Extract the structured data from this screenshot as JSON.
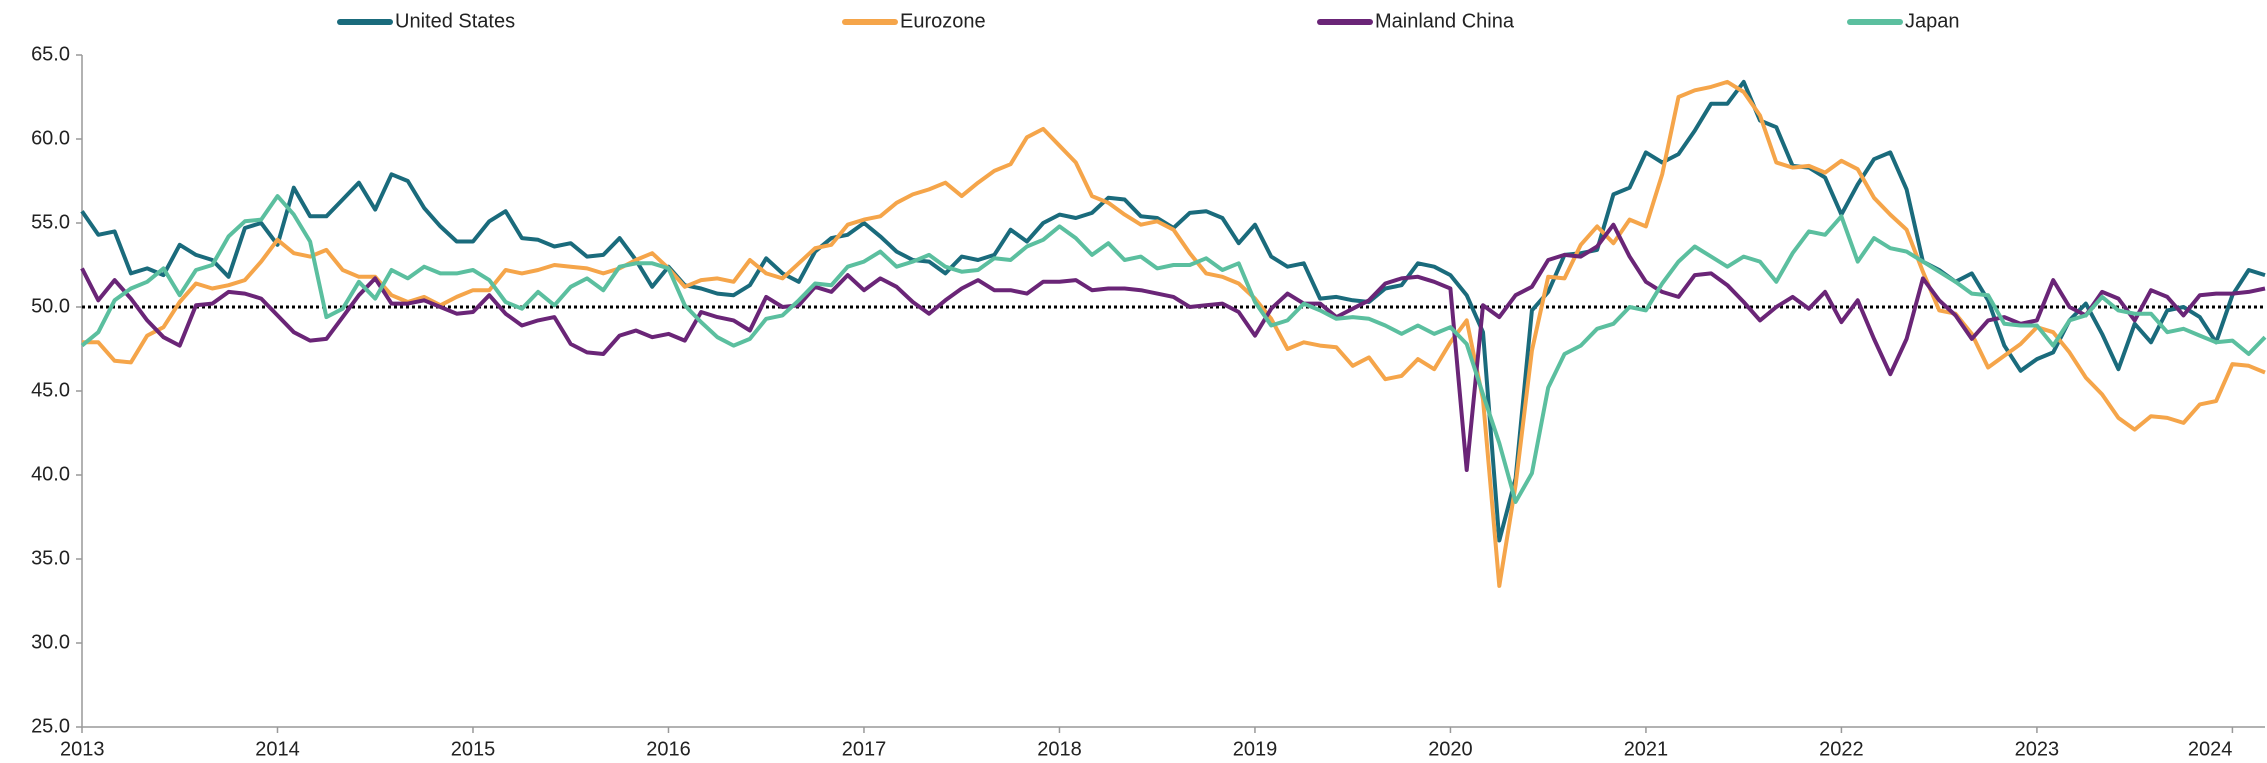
{
  "chart_data": {
    "type": "line",
    "categories": [
      "2013",
      null,
      null,
      null,
      null,
      null,
      null,
      null,
      null,
      null,
      null,
      null,
      "2014",
      null,
      null,
      null,
      null,
      null,
      null,
      null,
      null,
      null,
      null,
      null,
      "2015",
      null,
      null,
      null,
      null,
      null,
      null,
      null,
      null,
      null,
      null,
      null,
      "2016",
      null,
      null,
      null,
      null,
      null,
      null,
      null,
      null,
      null,
      null,
      null,
      "2017",
      null,
      null,
      null,
      null,
      null,
      null,
      null,
      null,
      null,
      null,
      null,
      "2018",
      null,
      null,
      null,
      null,
      null,
      null,
      null,
      null,
      null,
      null,
      null,
      "2019",
      null,
      null,
      null,
      null,
      null,
      null,
      null,
      null,
      null,
      null,
      null,
      "2020",
      null,
      null,
      null,
      null,
      null,
      null,
      null,
      null,
      null,
      null,
      null,
      "2021",
      null,
      null,
      null,
      null,
      null,
      null,
      null,
      null,
      null,
      null,
      null,
      "2022",
      null,
      null,
      null,
      null,
      null,
      null,
      null,
      null,
      null,
      null,
      null,
      "2023",
      null,
      null,
      null,
      null,
      null,
      null,
      null,
      null,
      null,
      null,
      null,
      "2024",
      null,
      null
    ],
    "series": [
      {
        "name": "United States",
        "color": "#1a6b7c",
        "values": [
          55.7,
          54.3,
          54.5,
          52.0,
          52.3,
          51.9,
          53.7,
          53.1,
          52.8,
          51.8,
          54.7,
          55.0,
          53.7,
          57.1,
          55.4,
          55.4,
          56.4,
          57.4,
          55.8,
          57.9,
          57.5,
          55.9,
          54.8,
          53.9,
          53.9,
          55.1,
          55.7,
          54.1,
          54.0,
          53.6,
          53.8,
          53.0,
          53.1,
          54.1,
          52.8,
          51.2,
          52.4,
          51.3,
          51.1,
          50.8,
          50.7,
          51.3,
          52.9,
          52.0,
          51.5,
          53.3,
          54.1,
          54.3,
          55.0,
          54.2,
          53.3,
          52.8,
          52.7,
          52.0,
          53.0,
          52.8,
          53.1,
          54.6,
          53.9,
          55.0,
          55.5,
          55.3,
          55.6,
          56.5,
          56.4,
          55.4,
          55.3,
          54.7,
          55.6,
          55.7,
          55.3,
          53.8,
          54.9,
          53.0,
          52.4,
          52.6,
          50.5,
          50.6,
          50.4,
          50.3,
          51.1,
          51.3,
          52.6,
          52.4,
          51.9,
          50.7,
          48.5,
          36.1,
          39.8,
          49.8,
          50.9,
          53.1,
          53.2,
          53.4,
          56.7,
          57.1,
          59.2,
          58.6,
          59.1,
          60.5,
          62.1,
          62.1,
          63.4,
          61.1,
          60.7,
          58.4,
          58.3,
          57.7,
          55.5,
          57.3,
          58.8,
          59.2,
          57.0,
          52.7,
          52.2,
          51.5,
          52.0,
          50.4,
          47.7,
          46.2,
          46.9,
          47.3,
          49.2,
          50.2,
          48.4,
          46.3,
          49.0,
          47.9,
          49.8,
          50.0,
          49.4,
          47.9,
          50.7,
          52.2,
          51.9
        ]
      },
      {
        "name": "Eurozone",
        "color": "#f5a54a",
        "values": [
          47.9,
          47.9,
          46.8,
          46.7,
          48.3,
          48.8,
          50.3,
          51.4,
          51.1,
          51.3,
          51.6,
          52.7,
          54.0,
          53.2,
          53.0,
          53.4,
          52.2,
          51.8,
          51.8,
          50.7,
          50.3,
          50.6,
          50.1,
          50.6,
          51.0,
          51.0,
          52.2,
          52.0,
          52.2,
          52.5,
          52.4,
          52.3,
          52.0,
          52.3,
          52.8,
          53.2,
          52.3,
          51.2,
          51.6,
          51.7,
          51.5,
          52.8,
          52.0,
          51.7,
          52.6,
          53.5,
          53.7,
          54.9,
          55.2,
          55.4,
          56.2,
          56.7,
          57.0,
          57.4,
          56.6,
          57.4,
          58.1,
          58.5,
          60.1,
          60.6,
          59.6,
          58.6,
          56.6,
          56.2,
          55.5,
          54.9,
          55.1,
          54.6,
          53.2,
          52.0,
          51.8,
          51.4,
          50.5,
          49.3,
          47.5,
          47.9,
          47.7,
          47.6,
          46.5,
          47.0,
          45.7,
          45.9,
          46.9,
          46.3,
          47.9,
          49.2,
          44.5,
          33.4,
          39.4,
          47.4,
          51.8,
          51.7,
          53.7,
          54.8,
          53.8,
          55.2,
          54.8,
          57.9,
          62.5,
          62.9,
          63.1,
          63.4,
          62.8,
          61.4,
          58.6,
          58.3,
          58.4,
          58.0,
          58.7,
          58.2,
          56.5,
          55.5,
          54.6,
          52.1,
          49.8,
          49.6,
          48.4,
          46.4,
          47.1,
          47.8,
          48.8,
          48.5,
          47.3,
          45.8,
          44.8,
          43.4,
          42.7,
          43.5,
          43.4,
          43.1,
          44.2,
          44.4,
          46.6,
          46.5,
          46.1
        ]
      },
      {
        "name": "Mainland China",
        "color": "#6a2577",
        "values": [
          52.3,
          50.4,
          51.6,
          50.5,
          49.2,
          48.2,
          47.7,
          50.1,
          50.2,
          50.9,
          50.8,
          50.5,
          49.5,
          48.5,
          48.0,
          48.1,
          49.4,
          50.7,
          51.7,
          50.2,
          50.2,
          50.4,
          50.0,
          49.6,
          49.7,
          50.7,
          49.6,
          48.9,
          49.2,
          49.4,
          47.8,
          47.3,
          47.2,
          48.3,
          48.6,
          48.2,
          48.4,
          48.0,
          49.7,
          49.4,
          49.2,
          48.6,
          50.6,
          50.0,
          50.1,
          51.2,
          50.9,
          51.9,
          51.0,
          51.7,
          51.2,
          50.3,
          49.6,
          50.4,
          51.1,
          51.6,
          51.0,
          51.0,
          50.8,
          51.5,
          51.5,
          51.6,
          51.0,
          51.1,
          51.1,
          51.0,
          50.8,
          50.6,
          50.0,
          50.1,
          50.2,
          49.7,
          48.3,
          49.9,
          50.8,
          50.2,
          50.2,
          49.4,
          49.9,
          50.4,
          51.4,
          51.7,
          51.8,
          51.5,
          51.1,
          40.3,
          50.1,
          49.4,
          50.7,
          51.2,
          52.8,
          53.1,
          53.0,
          53.6,
          54.9,
          53.0,
          51.5,
          50.9,
          50.6,
          51.9,
          52.0,
          51.3,
          50.3,
          49.2,
          50.0,
          50.6,
          49.9,
          50.9,
          49.1,
          50.4,
          48.1,
          46.0,
          48.1,
          51.7,
          50.4,
          49.5,
          48.1,
          49.2,
          49.4,
          49.0,
          49.2,
          51.6,
          50.0,
          49.5,
          50.9,
          50.5,
          49.2,
          51.0,
          50.6,
          49.5,
          50.7,
          50.8,
          50.8,
          50.9,
          51.1
        ]
      },
      {
        "name": "Japan",
        "color": "#5bbf9f",
        "values": [
          47.7,
          48.5,
          50.4,
          51.1,
          51.5,
          52.3,
          50.7,
          52.2,
          52.5,
          54.2,
          55.1,
          55.2,
          56.6,
          55.5,
          53.9,
          49.4,
          49.9,
          51.5,
          50.5,
          52.2,
          51.7,
          52.4,
          52.0,
          52.0,
          52.2,
          51.6,
          50.3,
          49.9,
          50.9,
          50.1,
          51.2,
          51.7,
          51.0,
          52.4,
          52.6,
          52.6,
          52.3,
          50.1,
          49.1,
          48.2,
          47.7,
          48.1,
          49.3,
          49.5,
          50.4,
          51.4,
          51.3,
          52.4,
          52.7,
          53.3,
          52.4,
          52.7,
          53.1,
          52.4,
          52.1,
          52.2,
          52.9,
          52.8,
          53.6,
          54.0,
          54.8,
          54.1,
          53.1,
          53.8,
          52.8,
          53.0,
          52.3,
          52.5,
          52.5,
          52.9,
          52.2,
          52.6,
          50.3,
          48.9,
          49.2,
          50.2,
          49.8,
          49.3,
          49.4,
          49.3,
          48.9,
          48.4,
          48.9,
          48.4,
          48.8,
          47.8,
          44.8,
          41.9,
          38.4,
          40.1,
          45.2,
          47.2,
          47.7,
          48.7,
          49.0,
          50.0,
          49.8,
          51.4,
          52.7,
          53.6,
          53.0,
          52.4,
          53.0,
          52.7,
          51.5,
          53.2,
          54.5,
          54.3,
          55.4,
          52.7,
          54.1,
          53.5,
          53.3,
          52.7,
          52.1,
          51.5,
          50.8,
          50.7,
          49.0,
          48.9,
          48.9,
          47.7,
          49.2,
          49.5,
          50.6,
          49.8,
          49.6,
          49.6,
          48.5,
          48.7,
          48.3,
          47.9,
          48.0,
          47.2,
          48.2
        ]
      }
    ],
    "ylim": [
      25,
      65
    ],
    "yticks": [
      {
        "value": 25,
        "label": "25.0"
      },
      {
        "value": 30,
        "label": "30.0"
      },
      {
        "value": 35,
        "label": "35.0"
      },
      {
        "value": 40,
        "label": "40.0"
      },
      {
        "value": 45,
        "label": "45.0"
      },
      {
        "value": 50,
        "label": "50.0"
      },
      {
        "value": 55,
        "label": "55.0"
      },
      {
        "value": 60,
        "label": "60.0"
      },
      {
        "value": 65,
        "label": "65.0"
      }
    ],
    "hline": 50,
    "legend": "top"
  }
}
